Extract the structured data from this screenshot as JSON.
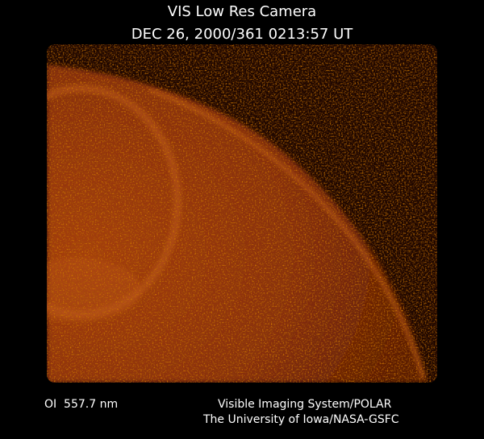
{
  "header": {
    "title": "VIS Low Res Camera",
    "timestamp": "DEC 26, 2000/361 0213:57 UT"
  },
  "footer": {
    "filter": "OI  557.7 nm",
    "instrument": "Visible Imaging System/POLAR",
    "institution": "The University of Iowa/NASA-GSFC"
  }
}
